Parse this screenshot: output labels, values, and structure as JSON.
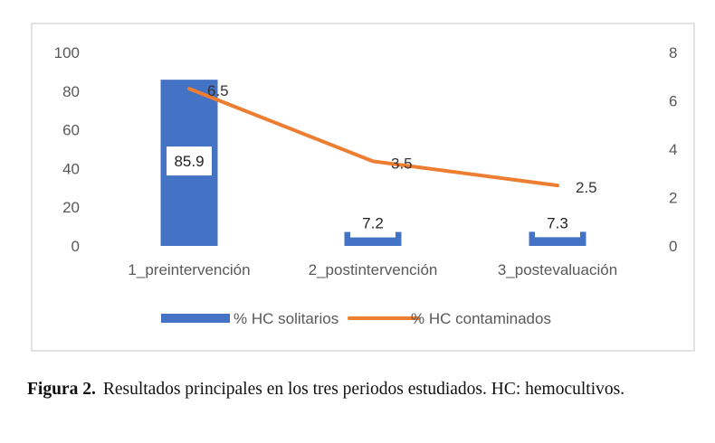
{
  "chart_data": {
    "type": "bar+line",
    "categories": [
      "1_preintervención",
      "2_postintervención",
      "3_postevaluación"
    ],
    "series": [
      {
        "name": "% HC solitarios",
        "type": "bar",
        "axis": "left",
        "values": [
          85.9,
          7.2,
          7.3
        ],
        "labels": [
          "85.9",
          "7.2",
          "7.3"
        ]
      },
      {
        "name": "% HC contaminados",
        "type": "line",
        "axis": "right",
        "values": [
          6.5,
          3.5,
          2.5
        ],
        "labels": [
          "6.5",
          "3.5",
          "2.5"
        ]
      }
    ],
    "y_left": {
      "min": 0,
      "max": 100,
      "ticks": [
        "0",
        "20",
        "40",
        "60",
        "80",
        "100"
      ]
    },
    "y_right": {
      "min": 0,
      "max": 8,
      "ticks": [
        "0",
        "2",
        "4",
        "6",
        "8"
      ]
    },
    "grid": false,
    "legend_position": "bottom",
    "colors": {
      "bar": "#4472c4",
      "line": "#ed7d31",
      "frame": "#d9d9d9",
      "text": "#595959"
    }
  },
  "caption": {
    "label": "Figura 2.",
    "text": "Resultados principales en los tres periodos estudiados. HC: hemocultivos."
  }
}
